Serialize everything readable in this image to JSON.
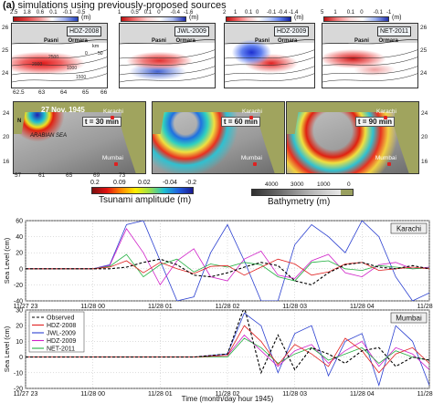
{
  "figure": {
    "panel_letter": "(a)",
    "panel_title": "simulations using previously-proposed sources"
  },
  "top_row": {
    "colorbar_unit": "(m)",
    "colorbars": [
      {
        "ticks": [
          "2.5",
          "1.8",
          "0.6",
          "0.1",
          "-0.1",
          "-0.5"
        ]
      },
      {
        "ticks": [
          "1",
          "0.5",
          "0.1",
          "0",
          "-0.4",
          "-1.6"
        ]
      },
      {
        "ticks": [
          "2",
          "1",
          "0.1",
          "0",
          "-0.1",
          "-0.4",
          "-1.4"
        ]
      },
      {
        "ticks": [
          "5",
          "1",
          "0.1",
          "0",
          "-0.1",
          "-1"
        ]
      }
    ],
    "maps": [
      {
        "source": "HDZ-2008",
        "pasni": "Pasni",
        "ormara": "Ormara",
        "km": "km",
        "km_ticks": [
          "0",
          "50"
        ]
      },
      {
        "source": "JWL-2009",
        "pasni": "Pasni",
        "ormara": "Ormara"
      },
      {
        "source": "HDZ-2009",
        "pasni": "Pasni",
        "ormara": "Ormara"
      },
      {
        "source": "NET-2011",
        "pasni": "Pasni",
        "ormara": "Ormara"
      }
    ],
    "lat_ticks": [
      "26",
      "25",
      "24"
    ],
    "lon_ticks": [
      "62.5",
      "63",
      "64",
      "65",
      "66"
    ],
    "contours": [
      "2500",
      "2000",
      "1000",
      "1500"
    ]
  },
  "middle_row": {
    "maps": [
      {
        "date": "27 Nov. 1945",
        "time": "t = 30 min",
        "karachi": "Karachi",
        "sea": "ARABIAN SEA",
        "mumbai": "Mumbai"
      },
      {
        "time": "t = 60 min",
        "karachi": "Karachi",
        "mumbai": "Mumbai"
      },
      {
        "time": "t = 90 min",
        "karachi": "Karachi",
        "mumbai": "Mumbai"
      }
    ],
    "lat_ticks": [
      "24",
      "20",
      "16"
    ],
    "lon_ticks": [
      "57",
      "61",
      "65",
      "69",
      "73"
    ],
    "north": "N",
    "amp_ticks": [
      "0.2",
      "0.09",
      "0.02",
      "-0.04",
      "-0.2"
    ],
    "amp_label": "Tsunami amplitude (m)",
    "bathy_ticks": [
      "4000",
      "3000",
      "1000",
      "0"
    ],
    "bathy_label": "Bathymetry (m)"
  },
  "karachi_chart": {
    "station": "Karachi",
    "ylabel": "Sea Level (cm)",
    "ylim": [
      -40,
      60
    ],
    "yticks": [
      "60",
      "40",
      "20",
      "0",
      "-20",
      "-40"
    ],
    "xticks": [
      "11/27 23",
      "11/28 00",
      "11/28 01",
      "11/28 02",
      "11/28 03",
      "11/28 04",
      "11/28 05"
    ]
  },
  "mumbai_chart": {
    "station": "Mumbai",
    "ylabel": "Sea Level (cm)",
    "ylim": [
      -20,
      30
    ],
    "yticks": [
      "30",
      "20",
      "10",
      "0",
      "-10",
      "-20"
    ],
    "xticks": [
      "11/27 23",
      "11/28 00",
      "11/28 01",
      "11/28 02",
      "11/28 03",
      "11/28 04",
      "11/28 05"
    ],
    "xlabel": "Time (month/day hour 1945)"
  },
  "legend": [
    {
      "name": "Observed",
      "color": "#000000",
      "dash": "3,2"
    },
    {
      "name": "HDZ-2008",
      "color": "#e02020",
      "dash": ""
    },
    {
      "name": "JWL-2009",
      "color": "#2a3fd0",
      "dash": ""
    },
    {
      "name": "HDZ-2009",
      "color": "#d020c8",
      "dash": ""
    },
    {
      "name": "NET-2011",
      "color": "#22b040",
      "dash": ""
    }
  ],
  "chart_data": [
    {
      "type": "line",
      "station": "Karachi",
      "x_hours": [
        0,
        0.25,
        0.5,
        0.75,
        1.0,
        1.25,
        1.5,
        1.75,
        2.0,
        2.25,
        2.5,
        2.75,
        3.0,
        3.25,
        3.5,
        3.75,
        4.0,
        4.25,
        4.5,
        4.75,
        5.0,
        5.25,
        5.5,
        5.75,
        6.0
      ],
      "series": [
        {
          "name": "Observed",
          "values": [
            0,
            0,
            0,
            0,
            0,
            0,
            2,
            8,
            12,
            5,
            -8,
            -10,
            -5,
            2,
            8,
            4,
            -15,
            -20,
            -5,
            5,
            8,
            2,
            0,
            4,
            0
          ]
        },
        {
          "name": "HDZ-2008",
          "values": [
            0,
            0,
            0,
            0,
            0,
            2,
            10,
            -5,
            8,
            0,
            -6,
            3,
            4,
            -8,
            2,
            12,
            6,
            -8,
            -4,
            6,
            8,
            -2,
            0,
            2,
            0
          ]
        },
        {
          "name": "JWL-2009",
          "values": [
            0,
            0,
            0,
            0,
            0,
            5,
            55,
            60,
            10,
            -40,
            -35,
            20,
            55,
            10,
            -40,
            -40,
            30,
            55,
            40,
            20,
            60,
            40,
            -10,
            -40,
            -30
          ]
        },
        {
          "name": "HDZ-2009",
          "values": [
            0,
            0,
            0,
            0,
            0,
            4,
            50,
            20,
            -20,
            10,
            25,
            -10,
            -15,
            12,
            22,
            -8,
            -12,
            10,
            18,
            -5,
            -10,
            5,
            8,
            0,
            2
          ]
        },
        {
          "name": "NET-2011",
          "values": [
            0,
            0,
            0,
            0,
            0,
            3,
            18,
            -10,
            5,
            12,
            -4,
            6,
            2,
            8,
            5,
            -10,
            -15,
            8,
            10,
            0,
            -2,
            4,
            2,
            0,
            1
          ]
        }
      ]
    },
    {
      "type": "line",
      "station": "Mumbai",
      "x_hours": [
        0,
        0.5,
        1.0,
        1.5,
        2.0,
        2.5,
        3.0,
        3.25,
        3.5,
        3.75,
        4.0,
        4.25,
        4.5,
        4.75,
        5.0,
        5.25,
        5.5,
        5.75,
        6.0
      ],
      "series": [
        {
          "name": "Observed",
          "values": [
            0,
            0,
            0,
            0,
            0,
            0,
            2,
            32,
            -10,
            14,
            -8,
            6,
            2,
            -4,
            4,
            6,
            -6,
            0,
            -2
          ]
        },
        {
          "name": "HDZ-2008",
          "values": [
            0,
            0,
            0,
            0,
            0,
            0,
            1,
            20,
            10,
            -5,
            8,
            2,
            -6,
            12,
            4,
            -10,
            2,
            6,
            -4
          ]
        },
        {
          "name": "JWL-2009",
          "values": [
            0,
            0,
            0,
            0,
            0,
            0,
            2,
            28,
            20,
            -10,
            15,
            20,
            -12,
            10,
            15,
            -18,
            20,
            10,
            -18
          ]
        },
        {
          "name": "HDZ-2009",
          "values": [
            0,
            0,
            0,
            0,
            0,
            0,
            1,
            14,
            4,
            -6,
            4,
            8,
            -4,
            4,
            10,
            -6,
            6,
            2,
            -8
          ]
        },
        {
          "name": "NET-2011",
          "values": [
            0,
            0,
            0,
            0,
            0,
            0,
            0,
            12,
            6,
            -4,
            2,
            6,
            -2,
            2,
            6,
            -4,
            4,
            0,
            -2
          ]
        }
      ]
    }
  ]
}
